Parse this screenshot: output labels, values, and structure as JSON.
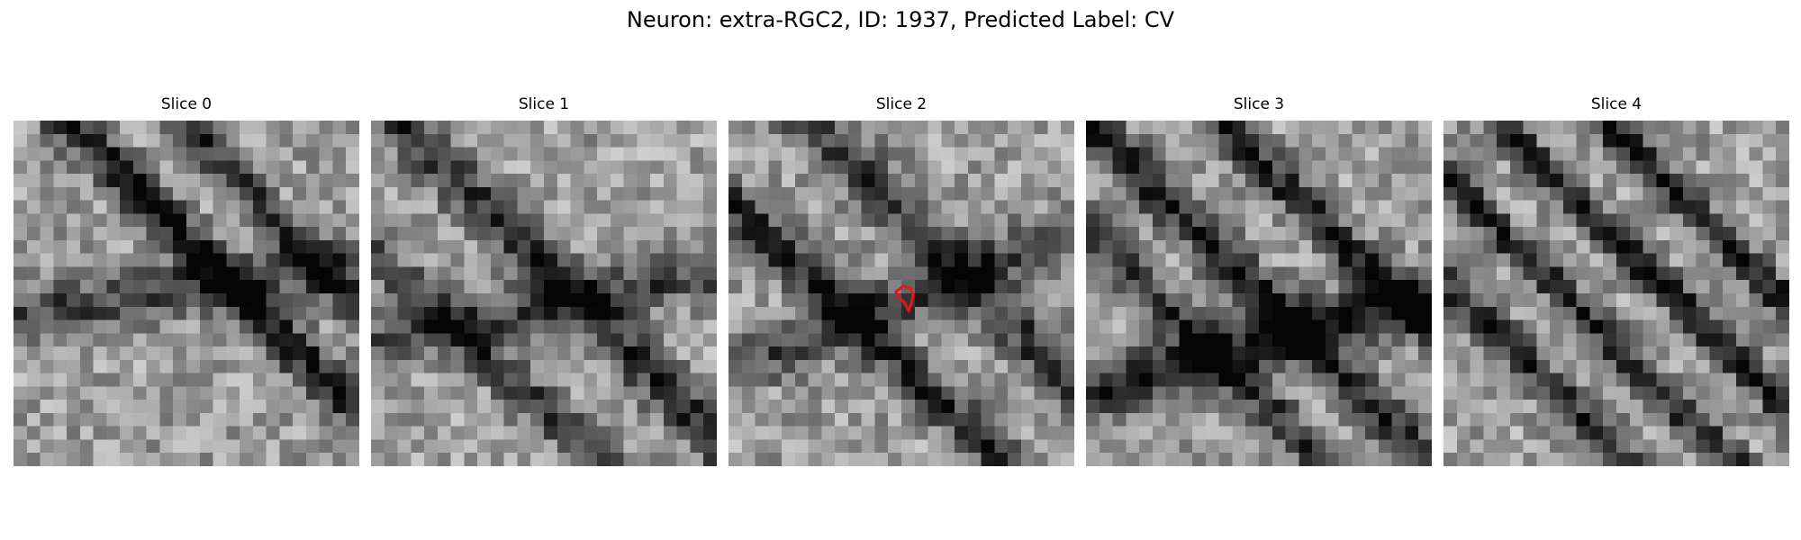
{
  "figure": {
    "title": "Neuron: extra-RGC2, ID: 1937, Predicted Label: CV"
  },
  "panels": [
    {
      "title": "Slice 0",
      "grid": 26
    },
    {
      "title": "Slice 1",
      "grid": 26
    },
    {
      "title": "Slice 2",
      "grid": 26,
      "has_marker": true,
      "marker_color": "#e8141c"
    },
    {
      "title": "Slice 3",
      "grid": 26
    },
    {
      "title": "Slice 4",
      "grid": 26
    }
  ]
}
